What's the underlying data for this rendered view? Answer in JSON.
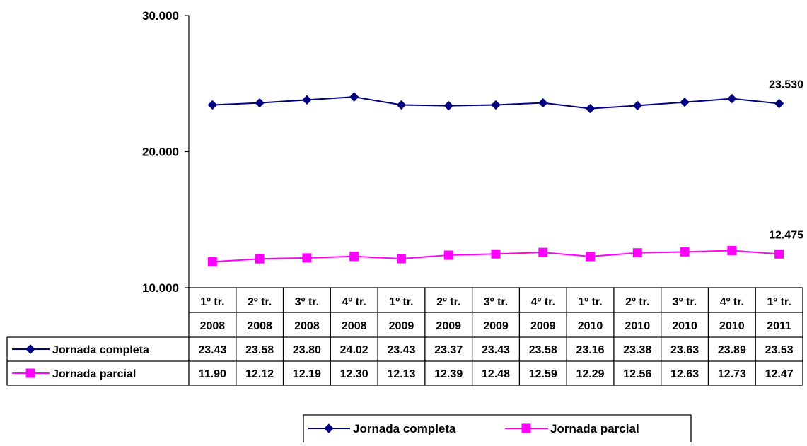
{
  "chart_data": {
    "type": "line",
    "title": "",
    "xlabel": "",
    "ylabel": "",
    "ylim": [
      10000,
      30000
    ],
    "y_ticks": [
      10000,
      20000,
      30000
    ],
    "y_tick_labels": [
      "10.000",
      "20.000",
      "30.000"
    ],
    "grid": false,
    "legend_position": "bottom",
    "categories": [
      [
        "1º tr.",
        "2008"
      ],
      [
        "2º tr.",
        "2008"
      ],
      [
        "3º tr.",
        "2008"
      ],
      [
        "4º tr.",
        "2008"
      ],
      [
        "1º tr.",
        "2009"
      ],
      [
        "2º tr.",
        "2009"
      ],
      [
        "3º tr.",
        "2009"
      ],
      [
        "4º tr.",
        "2009"
      ],
      [
        "1º tr.",
        "2010"
      ],
      [
        "2º tr.",
        "2010"
      ],
      [
        "3º tr.",
        "2010"
      ],
      [
        "4º tr.",
        "2010"
      ],
      [
        "1º tr.",
        "2011"
      ]
    ],
    "series": [
      {
        "name": "Jornada completa",
        "color": "#000080",
        "marker": "diamond",
        "values": [
          23430,
          23580,
          23800,
          24020,
          23430,
          23370,
          23430,
          23580,
          23160,
          23380,
          23630,
          23890,
          23530
        ],
        "table_values": [
          "23.43",
          "23.58",
          "23.80",
          "24.02",
          "23.43",
          "23.37",
          "23.43",
          "23.58",
          "23.16",
          "23.38",
          "23.63",
          "23.89",
          "23.53"
        ],
        "end_label": "23.530"
      },
      {
        "name": "Jornada parcial",
        "color": "#FF00FF",
        "marker": "square",
        "values": [
          11900,
          12120,
          12190,
          12300,
          12130,
          12390,
          12480,
          12590,
          12290,
          12560,
          12630,
          12730,
          12475
        ],
        "table_values": [
          "11.90",
          "12.12",
          "12.19",
          "12.30",
          "12.13",
          "12.39",
          "12.48",
          "12.59",
          "12.29",
          "12.56",
          "12.63",
          "12.73",
          "12.47"
        ],
        "end_label": "12.475"
      }
    ]
  }
}
